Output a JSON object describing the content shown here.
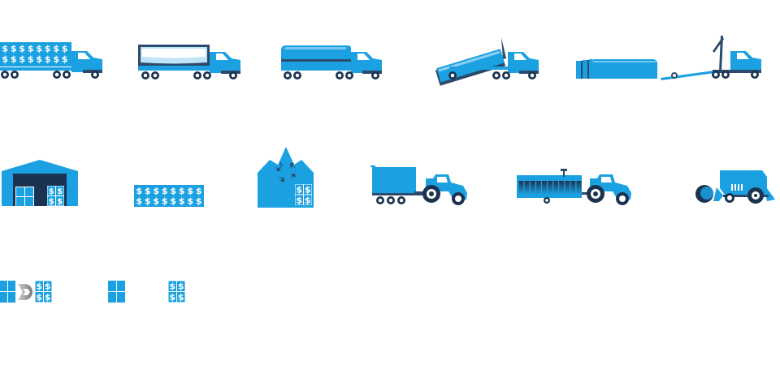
{
  "colors": {
    "primary": "#1BA1E2",
    "dark": "#2C4A6B",
    "navy": "#1B3350",
    "light": "#BFE3F7",
    "grey": "#9A9A9A",
    "white": "#FFFFFF"
  },
  "symbols": {
    "currency": "$"
  },
  "rows": [
    {
      "name": "vehicle-row",
      "icons": [
        "flatbed-truck-with-bale-stacks-icon",
        "covered-box-truck-icon",
        "tanker-truck-icon",
        "tipping-dump-truck-icon",
        "truck-with-lift-ramp-and-bale-rows-icon"
      ]
    },
    {
      "name": "storage-and-farm-row",
      "icons": [
        "warehouse-icon",
        "bale-stack-icon",
        "recycling-barn-icon",
        "tractor-with-trailer-icon",
        "tractor-with-bale-wagon-icon",
        "round-baler-icon"
      ]
    },
    {
      "name": "small-icon-row",
      "icons": [
        "bale-conversion-icon",
        "square-bale-icon",
        "priced-bale-icon"
      ]
    }
  ]
}
